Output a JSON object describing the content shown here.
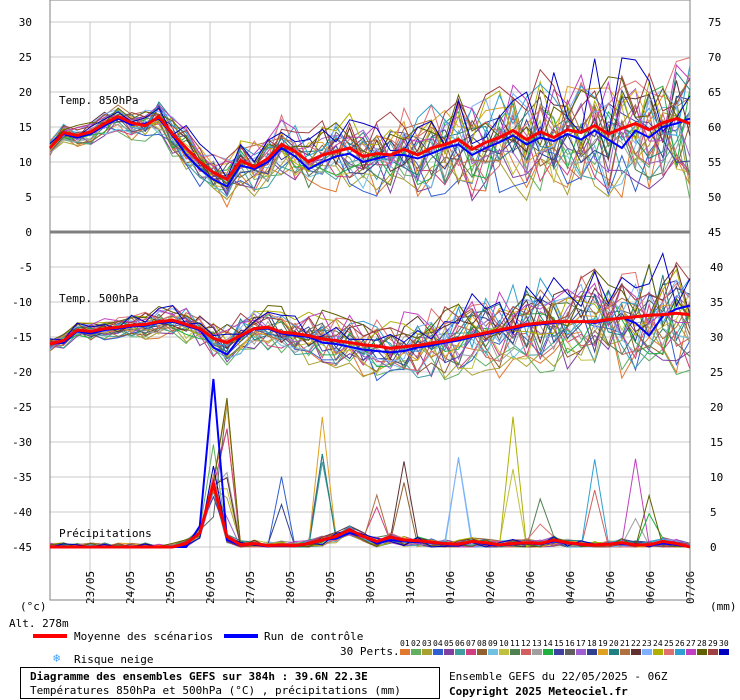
{
  "chart_data": {
    "type": "line",
    "title": "Diagramme des ensembles GEFS sur 384h : 39.6N 22.3E",
    "subtitle": "Températures 850hPa et 500hPa (°C) , précipitations (mm)",
    "left_axis": {
      "ticks": [
        30,
        25,
        20,
        15,
        10,
        5,
        0,
        -5,
        -10,
        -15,
        -20,
        -25,
        -30,
        -35,
        -40,
        -45
      ],
      "unit": "(°c)"
    },
    "right_axis_top": {
      "ticks": [
        75,
        70,
        65,
        60,
        55,
        50,
        45
      ]
    },
    "right_axis_bottom": {
      "ticks": [
        40,
        35,
        30,
        25,
        20,
        15,
        10,
        5,
        0
      ],
      "unit": "(mm)"
    },
    "x_labels": [
      "23/05",
      "24/05",
      "25/05",
      "26/05",
      "27/05",
      "28/05",
      "29/05",
      "30/05",
      "31/05",
      "01/06",
      "02/06",
      "03/06",
      "04/06",
      "05/06",
      "06/06",
      "07/06"
    ],
    "altitude_label": "Alt. 278m",
    "panels": {
      "t850": "Temp. 850hPa",
      "t500": "Temp. 500hPa",
      "precip": "Précipitations"
    },
    "series": [
      {
        "name": "Moyenne des scénarios",
        "color": "#ff0000",
        "t850": [
          12,
          14.2,
          13.8,
          14.3,
          15.5,
          16.5,
          15.6,
          15.2,
          16.5,
          14,
          12,
          10,
          8.5,
          7.5,
          10.2,
          9.3,
          10.5,
          12.5,
          11.5,
          10,
          11,
          11.5,
          12,
          10.8,
          11.2,
          11,
          11.8,
          11,
          12,
          12.5,
          13.2,
          11.8,
          12.8,
          13.5,
          14.5,
          13.2,
          14.3,
          13.5,
          14.6,
          14.2,
          15.2,
          14,
          14.8,
          15.5,
          14.6,
          15.6,
          16.2,
          15.5
        ],
        "t500": [
          -16,
          -15.5,
          -14,
          -14.2,
          -13.8,
          -13.6,
          -13.3,
          -13.2,
          -12.8,
          -12.6,
          -13.2,
          -13.8,
          -15.2,
          -15.8,
          -14.8,
          -13.8,
          -13.6,
          -14.3,
          -14.5,
          -14.8,
          -15.3,
          -15.5,
          -15.8,
          -16.1,
          -16.3,
          -16.6,
          -16.4,
          -16.2,
          -15.9,
          -15.6,
          -15.2,
          -14.8,
          -14.4,
          -14,
          -13.6,
          -13.2,
          -13,
          -12.8,
          -12.8,
          -12.8,
          -12.8,
          -12.5,
          -12.3,
          -12.1,
          -11.9,
          -11.8,
          -11.6,
          -11.8
        ],
        "precip": [
          0,
          0,
          0,
          0,
          0,
          0,
          0,
          0,
          0,
          0,
          0.5,
          2,
          9,
          1.5,
          0.3,
          0.5,
          0.2,
          0.3,
          0.2,
          0.5,
          1,
          1.5,
          2.5,
          1.5,
          0.8,
          1.4,
          1,
          0.9,
          0.7,
          0.5,
          0.4,
          0.8,
          0.6,
          0.3,
          0.5,
          0.6,
          0.5,
          1,
          0.6,
          0.4,
          0.3,
          0.4,
          0.6,
          0.3,
          0.3,
          0.8,
          0.5,
          0
        ]
      },
      {
        "name": "Run de contrôle",
        "color": "#0000ff",
        "t850": [
          12,
          14,
          13.5,
          14,
          15.2,
          16.2,
          15.3,
          15.5,
          16.2,
          13.8,
          11,
          9,
          7.5,
          6.5,
          9.5,
          9,
          10,
          12,
          10.8,
          9,
          10,
          10.8,
          11.2,
          10,
          10.5,
          11,
          11,
          10.5,
          11.2,
          12,
          12.5,
          11,
          12,
          12.8,
          13.8,
          12.5,
          13.5,
          13,
          14,
          13.2,
          14.5,
          13.2,
          12,
          14.5,
          13.5,
          15,
          15.5,
          16.2
        ],
        "t500": [
          -16,
          -15.8,
          -14.2,
          -14.5,
          -14,
          -13.8,
          -13.5,
          -13.4,
          -13,
          -12.8,
          -13.4,
          -14,
          -16.5,
          -17.5,
          -15,
          -13.9,
          -13.8,
          -14.5,
          -14.8,
          -15,
          -15.8,
          -16,
          -16.4,
          -16.8,
          -17,
          -17.2,
          -17,
          -16.5,
          -16.2,
          -15.8,
          -15.5,
          -15,
          -14.6,
          -14.2,
          -13.8,
          -13.4,
          -13.2,
          -13,
          -12.8,
          -12.8,
          -13,
          -12.6,
          -12.2,
          -13,
          -14.8,
          -12,
          -11,
          -10.5
        ],
        "precip": [
          0,
          0,
          0,
          0,
          0,
          0,
          0,
          0,
          0,
          0,
          0,
          3,
          24,
          1,
          0.2,
          0.5,
          0.1,
          0.2,
          0.1,
          0.4,
          1,
          1.2,
          2,
          1.5,
          0.5,
          1,
          0.8,
          0.7,
          0.6,
          0.4,
          0.3,
          0.8,
          0.4,
          0.2,
          0.4,
          0.5,
          0.4,
          0.8,
          0.5,
          0.3,
          0.3,
          0.5,
          0.4,
          0.3,
          0.2,
          0.5,
          0.3,
          0
        ]
      }
    ],
    "perturbation_count": 30,
    "perturbation_colors": [
      "#e07830",
      "#60b060",
      "#a8a030",
      "#3060d0",
      "#8040a0",
      "#40a0a0",
      "#d04080",
      "#906030",
      "#70c0e0",
      "#c0c040",
      "#508050",
      "#d06060",
      "#a0a0a0",
      "#20b040",
      "#4040a0",
      "#606060",
      "#a060d0",
      "#304090",
      "#e0a020",
      "#208080",
      "#b07040",
      "#603030",
      "#80b0ff",
      "#b0b000",
      "#e07070",
      "#30a0d0",
      "#c040c0",
      "#606000",
      "#a04040",
      "#0000c0"
    ]
  },
  "legend": {
    "mean_label": "Moyenne des scénarios",
    "control_label": "Run de contrôle",
    "snow_label": "Risque neige",
    "snow_icon": "snowflake-icon",
    "perts_label": "30 Perts.",
    "pert_numbers": [
      "01",
      "02",
      "03",
      "04",
      "05",
      "06",
      "07",
      "08",
      "09",
      "10",
      "11",
      "12",
      "13",
      "14",
      "15",
      "16",
      "17",
      "18",
      "19",
      "20",
      "21",
      "22",
      "23",
      "24",
      "25",
      "26",
      "27",
      "28",
      "29",
      "30"
    ]
  },
  "footer": {
    "title": "Diagramme des ensembles GEFS sur 384h : 39.6N 22.3E",
    "subtitle": "Températures 850hPa et 500hPa (°C) , précipitations (mm)",
    "run_info": "Ensemble GEFS du 22/05/2025 - 06Z",
    "copyright": "Copyright 2025 Meteociel.fr"
  }
}
